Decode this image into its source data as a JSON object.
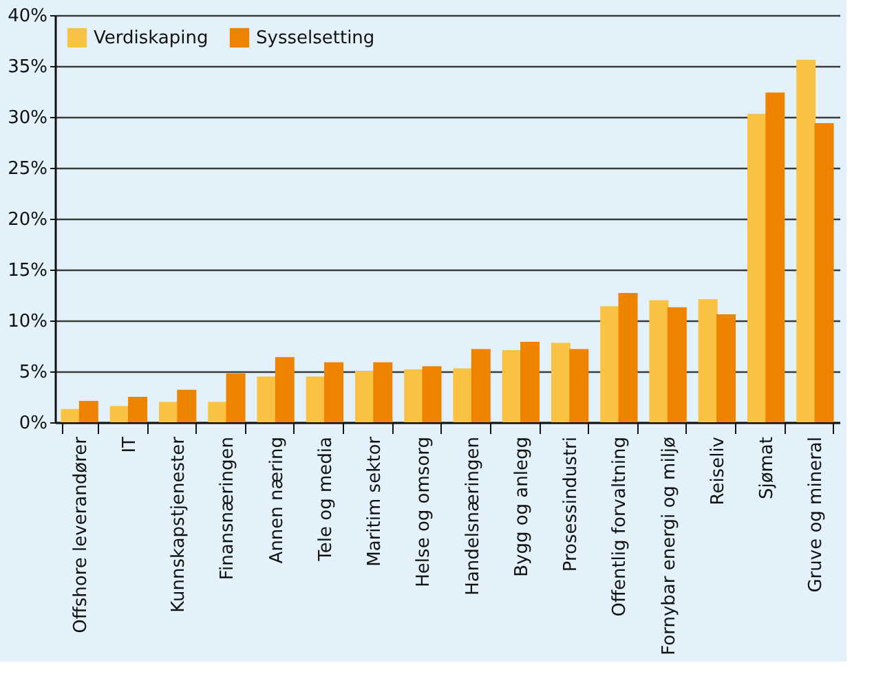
{
  "chart_data": {
    "type": "bar",
    "categories": [
      "Offshore leverandører",
      "IT",
      "Kunnskapstjenester",
      "Finansnæringen",
      "Annen næring",
      "Tele og media",
      "Maritim sektor",
      "Helse og omsorg",
      "Handelsnæringen",
      "Bygg og anlegg",
      "Prosessindustri",
      "Offentlig forvaltning",
      "Fornybar energi og miljø",
      "Reiseliv",
      "Sjømat",
      "Gruve og mineral"
    ],
    "series": [
      {
        "name": "Verdiskaping",
        "color": "#f9c243",
        "values": [
          1.3,
          1.6,
          2.0,
          2.0,
          4.5,
          4.5,
          5.0,
          5.2,
          5.3,
          7.1,
          7.8,
          11.4,
          12.0,
          12.1,
          30.3,
          35.6
        ]
      },
      {
        "name": "Sysselsetting",
        "color": "#ee8300",
        "values": [
          2.1,
          2.5,
          3.2,
          4.8,
          6.4,
          5.9,
          5.9,
          5.5,
          7.2,
          7.9,
          7.2,
          12.7,
          11.3,
          10.6,
          32.4,
          29.4
        ]
      }
    ],
    "ylim": [
      0,
      40
    ],
    "yticks": [
      {
        "value": 0,
        "label": "0%"
      },
      {
        "value": 5,
        "label": "5%"
      },
      {
        "value": 10,
        "label": "10%"
      },
      {
        "value": 15,
        "label": "15%"
      },
      {
        "value": 20,
        "label": "20%"
      },
      {
        "value": 25,
        "label": "25%"
      },
      {
        "value": 30,
        "label": "30%"
      },
      {
        "value": 35,
        "label": "35%"
      },
      {
        "value": 40,
        "label": "40%"
      }
    ],
    "grid": "y",
    "legend": "top left"
  }
}
